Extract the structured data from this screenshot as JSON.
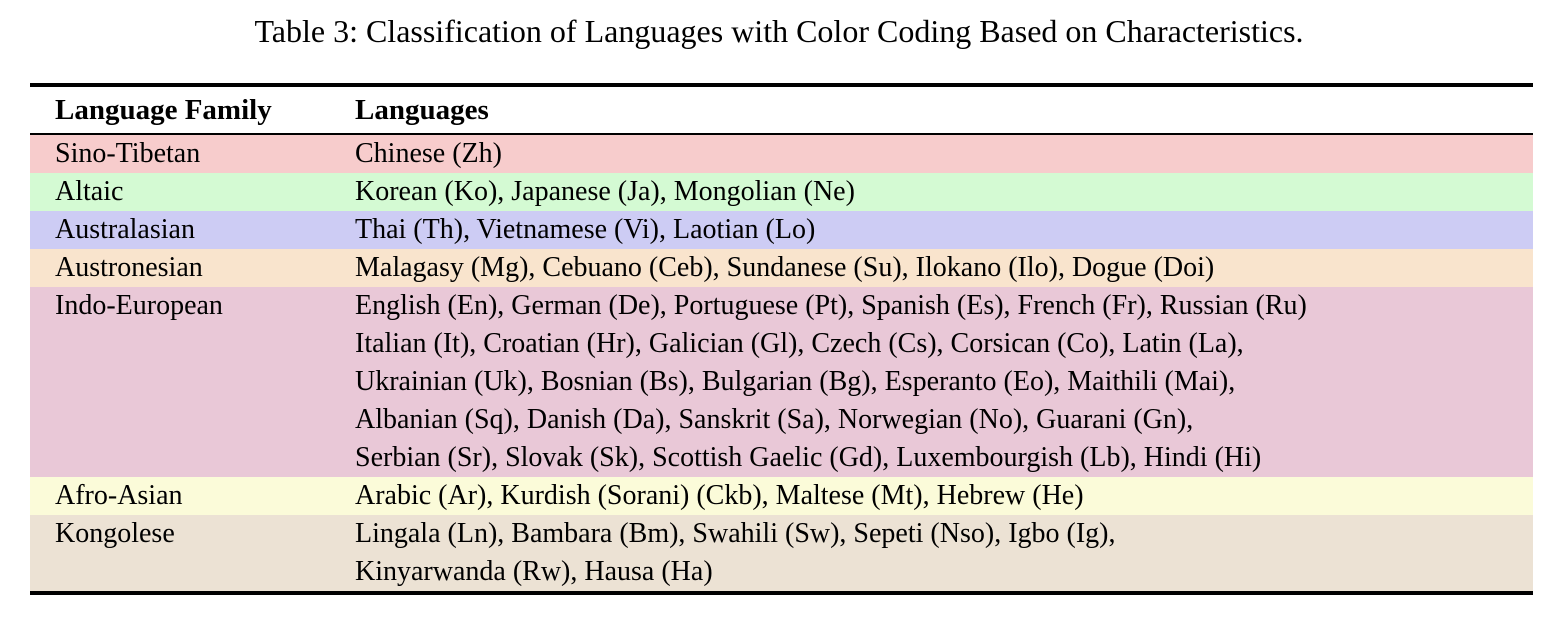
{
  "caption": "Table 3: Classification of Languages with Color Coding Based on Characteristics.",
  "table": {
    "header": {
      "family": "Language Family",
      "languages": "Languages"
    },
    "rows": [
      {
        "family": "Sino-Tibetan",
        "color": "#f7cccc",
        "languages": [
          "Chinese (Zh)"
        ]
      },
      {
        "family": "Altaic",
        "color": "#d4fad3",
        "languages": [
          "Korean (Ko), Japanese (Ja), Mongolian (Ne)"
        ]
      },
      {
        "family": "Australasian",
        "color": "#cdccf4",
        "languages": [
          "Thai (Th), Vietnamese (Vi), Laotian (Lo)"
        ]
      },
      {
        "family": "Austronesian",
        "color": "#f9e4cd",
        "languages": [
          "Malagasy (Mg), Cebuano (Ceb), Sundanese (Su), Ilokano (Ilo), Dogue (Doi)"
        ]
      },
      {
        "family": "Indo-European",
        "color": "#e9c8d7",
        "languages": [
          "English (En), German (De), Portuguese (Pt), Spanish (Es), French (Fr), Russian (Ru)",
          "Italian (It), Croatian (Hr), Galician (Gl), Czech (Cs), Corsican (Co), Latin (La),",
          "Ukrainian (Uk), Bosnian (Bs), Bulgarian (Bg), Esperanto (Eo), Maithili (Mai),",
          "Albanian (Sq), Danish (Da), Sanskrit (Sa), Norwegian (No), Guarani (Gn),",
          "Serbian (Sr), Slovak (Sk), Scottish Gaelic (Gd), Luxembourgish (Lb), Hindi (Hi)"
        ]
      },
      {
        "family": "Afro-Asian",
        "color": "#fbfbd9",
        "languages": [
          "Arabic (Ar), Kurdish (Sorani) (Ckb), Maltese (Mt), Hebrew (He)"
        ]
      },
      {
        "family": "Kongolese",
        "color": "#ece2d4",
        "languages": [
          "Lingala (Ln), Bambara (Bm), Swahili (Sw), Sepeti (Nso), Igbo (Ig),",
          "Kinyarwanda (Rw), Hausa (Ha)"
        ]
      }
    ]
  }
}
